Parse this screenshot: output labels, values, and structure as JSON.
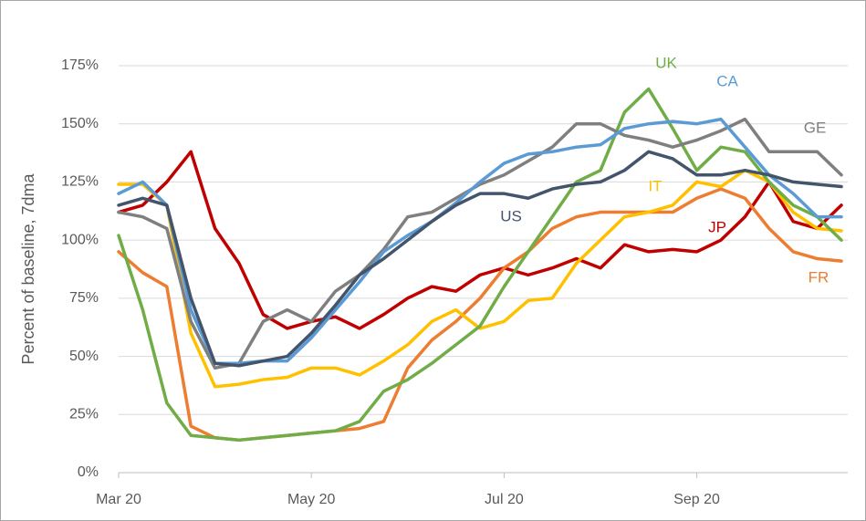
{
  "chart_data": {
    "type": "line",
    "y_label": "Percent of baseline, 7dma",
    "categories": [
      "Mar 20",
      null,
      null,
      null,
      null,
      null,
      null,
      null,
      "May 20",
      null,
      null,
      null,
      null,
      null,
      null,
      null,
      "Jul 20",
      null,
      null,
      null,
      null,
      null,
      null,
      null,
      "Sep 20",
      null,
      null,
      null,
      null,
      null,
      null
    ],
    "series": [
      {
        "name": "JP",
        "color": "#c00000",
        "values": [
          112,
          115,
          125,
          138,
          105,
          90,
          68,
          62,
          65,
          67,
          62,
          68,
          75,
          80,
          78,
          85,
          88,
          85,
          88,
          92,
          88,
          98,
          95,
          96,
          95,
          100,
          110,
          125,
          108,
          105,
          115
        ]
      },
      {
        "name": "FR",
        "color": "#ed7d31",
        "values": [
          95,
          86,
          80,
          20,
          15,
          14,
          15,
          16,
          17,
          18,
          19,
          22,
          45,
          57,
          65,
          75,
          88,
          95,
          105,
          110,
          112,
          112,
          112,
          112,
          118,
          122,
          118,
          105,
          95,
          92,
          91
        ]
      },
      {
        "name": "IT",
        "color": "#ffc000",
        "values": [
          124,
          124,
          115,
          60,
          37,
          38,
          40,
          41,
          45,
          45,
          42,
          48,
          55,
          65,
          70,
          62,
          65,
          74,
          75,
          90,
          100,
          110,
          112,
          115,
          125,
          123,
          130,
          125,
          112,
          105,
          104
        ]
      },
      {
        "name": "UK",
        "color": "#70ad47",
        "values": [
          102,
          70,
          30,
          16,
          15,
          14,
          15,
          16,
          17,
          18,
          22,
          35,
          40,
          47,
          55,
          63,
          80,
          95,
          110,
          125,
          130,
          155,
          165,
          148,
          130,
          140,
          138,
          125,
          115,
          110,
          100
        ]
      },
      {
        "name": "GE",
        "color": "#7f7f7f",
        "values": [
          112,
          110,
          105,
          65,
          45,
          47,
          65,
          70,
          65,
          78,
          85,
          96,
          110,
          112,
          118,
          124,
          128,
          134,
          140,
          150,
          150,
          145,
          143,
          140,
          143,
          147,
          152,
          138,
          138,
          138,
          128
        ]
      },
      {
        "name": "CA",
        "color": "#5b9bd5",
        "values": [
          120,
          125,
          115,
          70,
          47,
          47,
          48,
          48,
          58,
          70,
          82,
          95,
          102,
          108,
          116,
          125,
          133,
          137,
          138,
          140,
          141,
          148,
          150,
          151,
          150,
          152,
          140,
          128,
          120,
          110,
          110
        ]
      },
      {
        "name": "US",
        "color": "#44546a",
        "values": [
          115,
          118,
          115,
          75,
          47,
          46,
          48,
          50,
          60,
          72,
          85,
          92,
          100,
          108,
          115,
          120,
          120,
          118,
          122,
          124,
          125,
          130,
          138,
          135,
          128,
          128,
          130,
          128,
          125,
          124,
          123
        ]
      }
    ],
    "ylim": [
      0,
      175
    ],
    "yticks": [
      {
        "value": 0,
        "label": "0%"
      },
      {
        "value": 25,
        "label": "25%"
      },
      {
        "value": 50,
        "label": "50%"
      },
      {
        "value": 75,
        "label": "75%"
      },
      {
        "value": 100,
        "label": "100%"
      },
      {
        "value": 125,
        "label": "125%"
      },
      {
        "value": 150,
        "label": "150%"
      },
      {
        "value": 175,
        "label": "175%"
      }
    ],
    "grid": true
  }
}
